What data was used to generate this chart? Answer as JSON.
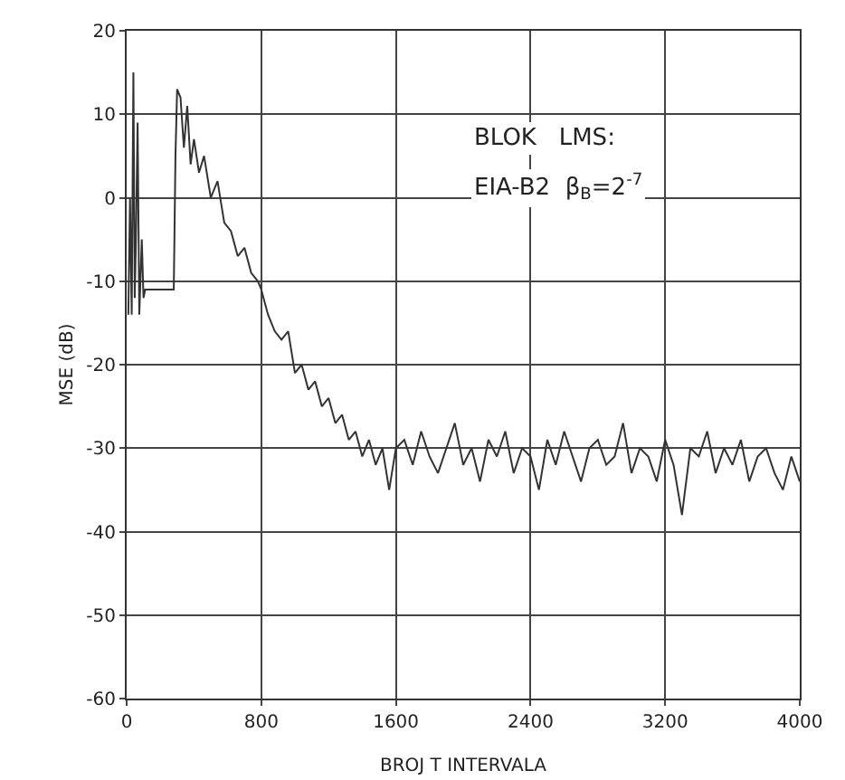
{
  "chart_data": {
    "type": "line",
    "xlabel": "BROJ T INTERVALA",
    "ylabel": "MSE (dB)",
    "annotations": [
      "BLOK   LMS:",
      "EIA-B2  β$_{B}$=2$^{-7}$"
    ],
    "x": [
      10,
      20,
      30,
      40,
      48,
      55,
      65,
      75,
      90,
      100,
      110,
      150,
      200,
      250,
      280,
      290,
      300,
      320,
      340,
      360,
      380,
      400,
      430,
      460,
      500,
      540,
      580,
      620,
      660,
      700,
      740,
      780,
      800,
      840,
      880,
      920,
      960,
      1000,
      1040,
      1080,
      1120,
      1160,
      1200,
      1240,
      1280,
      1320,
      1360,
      1400,
      1440,
      1480,
      1520,
      1560,
      1600,
      1650,
      1700,
      1750,
      1800,
      1850,
      1900,
      1950,
      2000,
      2050,
      2100,
      2150,
      2200,
      2250,
      2300,
      2350,
      2400,
      2450,
      2500,
      2550,
      2600,
      2650,
      2700,
      2750,
      2800,
      2850,
      2900,
      2950,
      3000,
      3050,
      3100,
      3150,
      3200,
      3250,
      3300,
      3350,
      3400,
      3450,
      3500,
      3550,
      3600,
      3650,
      3700,
      3750,
      3800,
      3850,
      3900,
      3950,
      4000
    ],
    "values": [
      -14,
      0,
      -14,
      15,
      -12,
      -5,
      9,
      -14,
      -5,
      -12,
      -11,
      -11,
      -11,
      -11,
      -11,
      5,
      13,
      12,
      6,
      11,
      4,
      7,
      3,
      5,
      0,
      2,
      -3,
      -4,
      -7,
      -6,
      -9,
      -10,
      -11,
      -14,
      -16,
      -17,
      -16,
      -21,
      -20,
      -23,
      -22,
      -25,
      -24,
      -27,
      -26,
      -29,
      -28,
      -31,
      -29,
      -32,
      -30,
      -35,
      -30,
      -29,
      -32,
      -28,
      -31,
      -33,
      -30,
      -27,
      -32,
      -30,
      -34,
      -29,
      -31,
      -28,
      -33,
      -30,
      -31,
      -35,
      -29,
      -32,
      -28,
      -31,
      -34,
      -30,
      -29,
      -32,
      -31,
      -27,
      -33,
      -30,
      -31,
      -34,
      -29,
      -32,
      -38,
      -30,
      -31,
      -28,
      -33,
      -30,
      -32,
      -29,
      -34,
      -31,
      -30,
      -33,
      -35,
      -31,
      -34
    ],
    "color": "#333333",
    "xlim": [
      0,
      4000
    ],
    "ylim": [
      -60,
      20
    ],
    "xticks": [
      0,
      800,
      1600,
      2400,
      3200,
      4000
    ],
    "yticks": [
      -60,
      -50,
      -40,
      -30,
      -20,
      -10,
      0,
      10,
      20
    ],
    "grid": true,
    "marker": "none",
    "line_style": "solid"
  }
}
